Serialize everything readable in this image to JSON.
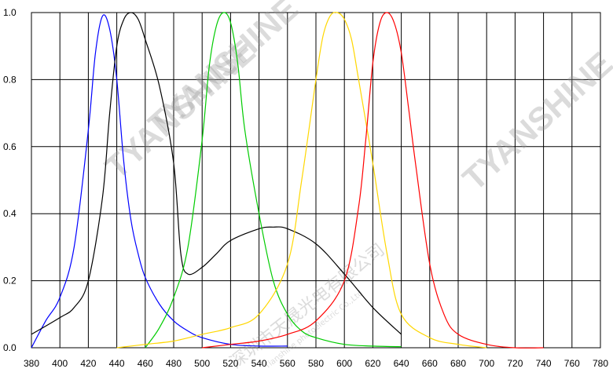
{
  "chart_data": {
    "type": "line",
    "title": "",
    "xlabel": "",
    "ylabel": "",
    "xlim": [
      380,
      780
    ],
    "ylim": [
      0,
      1.0
    ],
    "x_ticks": [
      "380",
      "400",
      "420",
      "440",
      "460",
      "480",
      "500",
      "520",
      "540",
      "560",
      "580",
      "600",
      "620",
      "640",
      "660",
      "680",
      "700",
      "720",
      "740",
      "760",
      "780"
    ],
    "y_ticks": [
      "0.0",
      "0.2",
      "0.4",
      "0.6",
      "0.8",
      "1.0"
    ],
    "grid": true,
    "legend": "none",
    "series": [
      {
        "color": "#0000ff",
        "x": [
          380,
          390,
          400,
          410,
          420,
          425,
          430,
          435,
          440,
          445,
          450,
          455,
          460,
          470,
          480,
          490,
          500,
          520,
          540,
          560
        ],
        "y": [
          0.0,
          0.08,
          0.15,
          0.3,
          0.65,
          0.88,
          0.99,
          0.95,
          0.8,
          0.55,
          0.38,
          0.28,
          0.21,
          0.13,
          0.08,
          0.05,
          0.03,
          0.01,
          0.005,
          0.005
        ]
      },
      {
        "color": "#000000",
        "x": [
          380,
          400,
          410,
          420,
          430,
          435,
          440,
          445,
          450,
          455,
          460,
          470,
          480,
          485,
          490,
          500,
          510,
          520,
          540,
          550,
          560,
          580,
          600,
          620,
          640
        ],
        "y": [
          0.04,
          0.09,
          0.12,
          0.2,
          0.45,
          0.7,
          0.9,
          0.98,
          1.0,
          0.98,
          0.92,
          0.78,
          0.55,
          0.28,
          0.22,
          0.24,
          0.28,
          0.32,
          0.355,
          0.36,
          0.355,
          0.31,
          0.22,
          0.12,
          0.04
        ]
      },
      {
        "color": "#00cc00",
        "x": [
          460,
          470,
          480,
          490,
          500,
          505,
          510,
          515,
          520,
          525,
          530,
          540,
          550,
          560,
          570,
          580,
          600,
          620,
          640
        ],
        "y": [
          0.0,
          0.06,
          0.15,
          0.3,
          0.62,
          0.84,
          0.96,
          1.0,
          0.97,
          0.85,
          0.65,
          0.4,
          0.2,
          0.1,
          0.05,
          0.03,
          0.01,
          0.005,
          0.003
        ]
      },
      {
        "color": "#ffd700",
        "x": [
          440,
          460,
          480,
          500,
          520,
          540,
          560,
          570,
          580,
          585,
          590,
          595,
          600,
          605,
          610,
          620,
          630,
          640,
          660,
          680,
          700
        ],
        "y": [
          0.0,
          0.01,
          0.02,
          0.04,
          0.06,
          0.1,
          0.25,
          0.5,
          0.8,
          0.93,
          0.99,
          1.0,
          0.98,
          0.92,
          0.8,
          0.55,
          0.28,
          0.1,
          0.03,
          0.01,
          0.0
        ]
      },
      {
        "color": "#ff0000",
        "x": [
          500,
          520,
          540,
          560,
          580,
          600,
          610,
          615,
          620,
          625,
          630,
          635,
          640,
          645,
          650,
          660,
          670,
          680,
          700,
          720,
          740
        ],
        "y": [
          0.0,
          0.01,
          0.02,
          0.04,
          0.08,
          0.2,
          0.42,
          0.62,
          0.85,
          0.97,
          1.0,
          0.97,
          0.88,
          0.72,
          0.55,
          0.25,
          0.1,
          0.04,
          0.01,
          0.0,
          0.0
        ]
      }
    ]
  },
  "watermarks": {
    "brand_main": "TYANSHINE",
    "brand_right": "TYANSHINE",
    "brand_left": "TYANSHINE",
    "company_cn": "深圳市天晟光电有限公司",
    "company_en": "Tianshine photoelectric Co.,Ltd"
  }
}
